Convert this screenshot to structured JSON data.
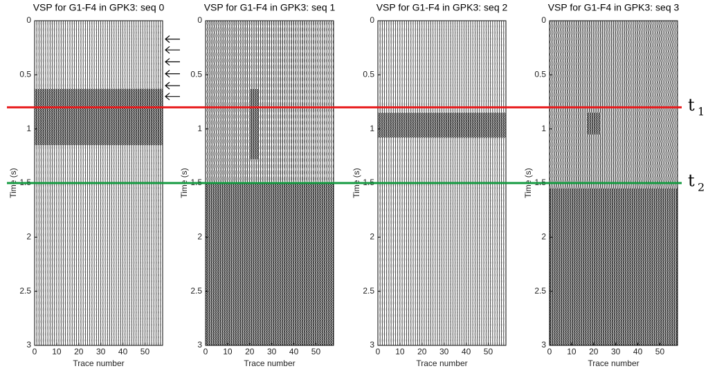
{
  "chart_data": [
    {
      "type": "seismic",
      "title": "VSP for G1-F4 in GPK3: seq 0",
      "xlabel": "Trace number",
      "ylabel": "Time (s)",
      "xlim": [
        0,
        58
      ],
      "xticks": [
        0,
        10,
        20,
        30,
        40,
        50
      ],
      "ylim": [
        0,
        3
      ],
      "yticks": [
        0,
        0.5,
        1,
        1.5,
        2,
        2.5,
        3
      ],
      "y_inverted": true,
      "bands": [
        {
          "time": [
            0.63,
            1.15
          ],
          "traces": [
            0,
            58
          ]
        }
      ],
      "arrows": [
        0.17,
        0.27,
        0.38,
        0.49,
        0.6,
        0.7
      ]
    },
    {
      "type": "seismic",
      "title": "VSP for G1-F4 in GPK3: seq 1",
      "xlabel": "Trace number",
      "ylabel": "Time (s)",
      "xlim": [
        0,
        58
      ],
      "xticks": [
        0,
        10,
        20,
        30,
        40,
        50
      ],
      "ylim": [
        0,
        3
      ],
      "yticks": [
        0,
        0.5,
        1,
        1.5,
        2,
        2.5,
        3
      ],
      "y_inverted": true,
      "bands": [
        {
          "time": [
            0.63,
            1.28
          ],
          "traces": [
            20,
            24
          ]
        },
        {
          "time": [
            1.5,
            3
          ],
          "traces": [
            0,
            58
          ]
        }
      ]
    },
    {
      "type": "seismic",
      "title": "VSP for G1-F4 in GPK3: seq 2",
      "xlabel": "Trace number",
      "ylabel": "Time (s)",
      "xlim": [
        0,
        58
      ],
      "xticks": [
        0,
        10,
        20,
        30,
        40,
        50
      ],
      "ylim": [
        0,
        3
      ],
      "yticks": [
        0,
        0.5,
        1,
        1.5,
        2,
        2.5,
        3
      ],
      "y_inverted": true,
      "bands": [
        {
          "time": [
            0.85,
            1.08
          ],
          "traces": [
            0,
            58
          ]
        }
      ]
    },
    {
      "type": "seismic",
      "title": "VSP for G1-F4 in GPK3: seq 3",
      "xlabel": "Trace number",
      "ylabel": "Time (s)",
      "xlim": [
        0,
        58
      ],
      "xticks": [
        0,
        10,
        20,
        30,
        40,
        50
      ],
      "ylim": [
        0,
        3
      ],
      "yticks": [
        0,
        0.5,
        1,
        1.5,
        2,
        2.5,
        3
      ],
      "y_inverted": true,
      "bands": [
        {
          "time": [
            0.85,
            1.05
          ],
          "traces": [
            17,
            23
          ]
        },
        {
          "time": [
            1.55,
            3
          ],
          "traces": [
            0,
            58
          ]
        }
      ]
    }
  ],
  "markers": [
    {
      "value": 0.8,
      "label": "t",
      "subscript": "1",
      "color": "#e8191b"
    },
    {
      "value": 1.5,
      "label": "t",
      "subscript": "2",
      "color": "#139a3f"
    }
  ]
}
